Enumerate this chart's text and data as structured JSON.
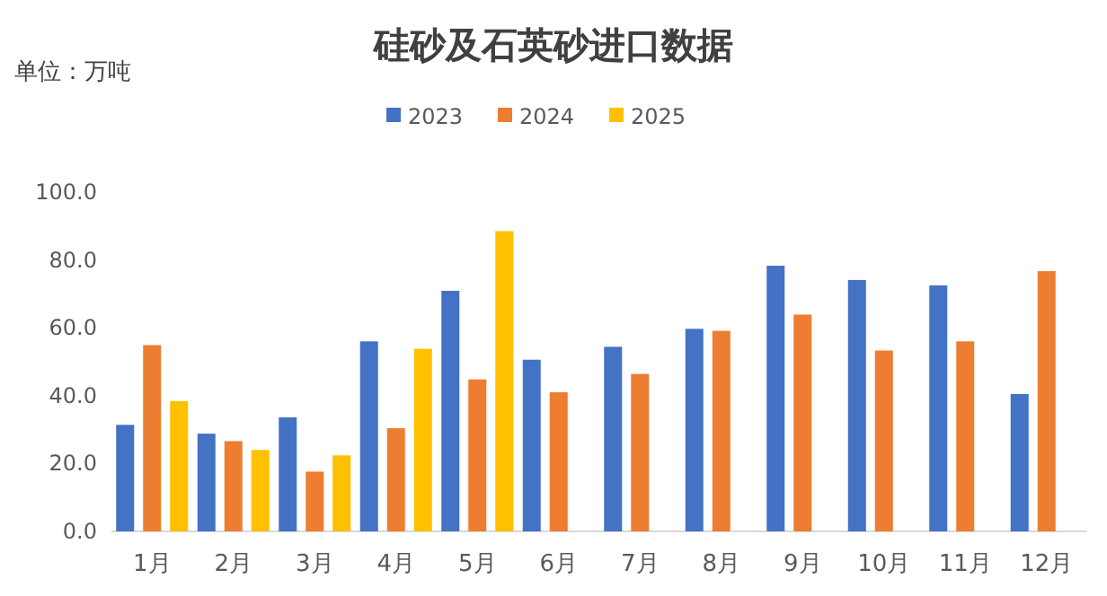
{
  "chart_data": {
    "type": "bar",
    "title": "硅砂及石英砂进口数据",
    "annotations": [
      "单位：万吨"
    ],
    "categories": [
      "1月",
      "2月",
      "3月",
      "4月",
      "5月",
      "6月",
      "7月",
      "8月",
      "9月",
      "10月",
      "11月",
      "12月"
    ],
    "series": [
      {
        "name": "2023",
        "color": "#4472c4",
        "values": [
          31.4,
          28.8,
          33.6,
          56.0,
          70.9,
          50.6,
          54.4,
          59.7,
          78.3,
          74.1,
          72.5,
          40.5
        ]
      },
      {
        "name": "2024",
        "color": "#ed7d31",
        "values": [
          54.9,
          26.6,
          17.6,
          30.4,
          44.8,
          41.0,
          46.4,
          59.1,
          63.9,
          53.3,
          56.0,
          76.7
        ]
      },
      {
        "name": "2025",
        "color": "#ffc000",
        "values": [
          38.4,
          24.0,
          22.4,
          53.8,
          88.5,
          null,
          null,
          null,
          null,
          null,
          null,
          null
        ]
      }
    ],
    "ylim": [
      0,
      100
    ],
    "yticks": [
      {
        "value": 0,
        "label": "0.0"
      },
      {
        "value": 20,
        "label": "20.0"
      },
      {
        "value": 40,
        "label": "40.0"
      },
      {
        "value": 60,
        "label": "60.0"
      },
      {
        "value": 80,
        "label": "80.0"
      },
      {
        "value": 100,
        "label": "100.0"
      }
    ],
    "grid": false,
    "legend": "top"
  }
}
